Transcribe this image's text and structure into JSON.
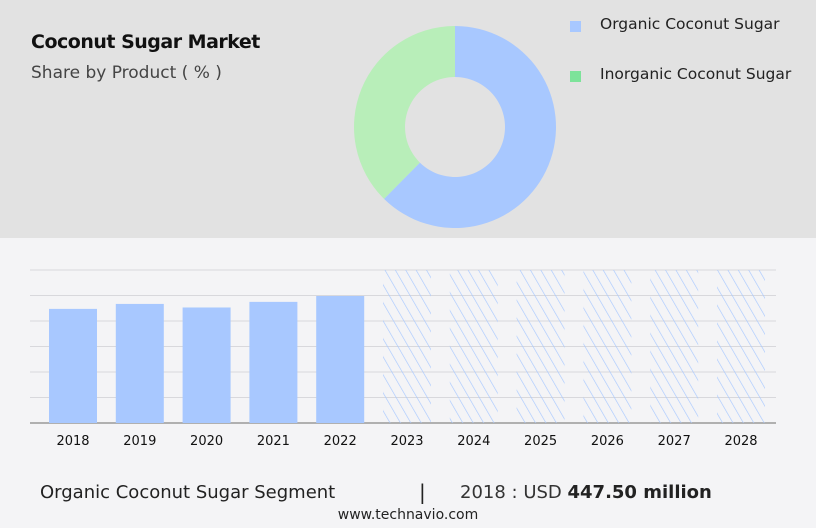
{
  "title": "Coconut Sugar Market",
  "subtitle": "Share by Product ( % )",
  "colors": {
    "organic": "#a8c8ff",
    "inorganic": "#b8eeb9",
    "inorganic_legend": "#7de39a",
    "top_bg": "#e2e2e2",
    "grid": "#d8d8dc",
    "axis": "#999999"
  },
  "chart_data": [
    {
      "type": "pie",
      "donut": true,
      "title": "Share by Product ( % )",
      "slices": [
        {
          "name": "Organic Coconut Sugar",
          "value": 62.4
        },
        {
          "name": "Inorganic Coconut Sugar",
          "value": 37.6
        }
      ],
      "legend": "top-right"
    },
    {
      "type": "bar",
      "categories": [
        "2018",
        "2019",
        "2020",
        "2021",
        "2022",
        "2023",
        "2024",
        "2025",
        "2026",
        "2027",
        "2028"
      ],
      "values": [
        447.5,
        467,
        453,
        475,
        498,
        null,
        null,
        null,
        null,
        null,
        null
      ],
      "forecast_categories": [
        "2023",
        "2024",
        "2025",
        "2026",
        "2027",
        "2028"
      ],
      "forecast_style": "hatched",
      "ylim": [
        0,
        600
      ],
      "grid": true,
      "ylabel": "",
      "xlabel": ""
    }
  ],
  "footer": {
    "segment": "Organic Coconut Sugar Segment",
    "separator": "|",
    "year_prefix": "2018 : USD ",
    "value": "447.50 million",
    "site": "www.technavio.com"
  }
}
